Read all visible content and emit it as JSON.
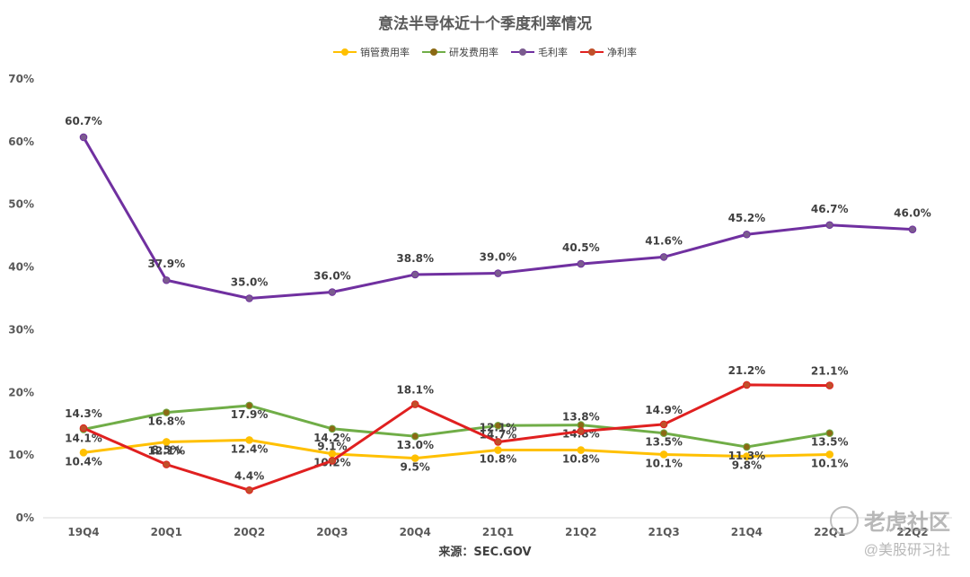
{
  "chart_data": {
    "type": "line",
    "title": "意法半导体近十个季度利率情况",
    "categories": [
      "19Q4",
      "20Q1",
      "20Q2",
      "20Q3",
      "20Q4",
      "21Q1",
      "21Q2",
      "21Q3",
      "21Q4",
      "22Q1",
      "22Q2"
    ],
    "ylim": [
      0,
      70
    ],
    "yticks": [
      "0%",
      "10%",
      "20%",
      "30%",
      "40%",
      "50%",
      "60%",
      "70%"
    ],
    "ytick_values": [
      0,
      10,
      20,
      30,
      40,
      50,
      60,
      70
    ],
    "grid": false,
    "legend_position": "top",
    "series": [
      {
        "name": "销管费用率",
        "color": "#FFC000",
        "marker": "#FFC000",
        "values": [
          10.4,
          12.1,
          12.4,
          10.2,
          9.5,
          10.8,
          10.8,
          10.1,
          9.8,
          10.1,
          null
        ],
        "labels": [
          "10.4%",
          "12.1%",
          "12.4%",
          "10.2%",
          "9.5%",
          "10.8%",
          "10.8%",
          "10.1%",
          "9.8%",
          "10.1%",
          null
        ]
      },
      {
        "name": "研发费用率",
        "color": "#70AD47",
        "marker": "#8B6914",
        "values": [
          14.1,
          16.8,
          17.9,
          14.2,
          13.0,
          14.7,
          14.8,
          13.5,
          11.3,
          13.5,
          null
        ],
        "labels": [
          "14.1%",
          "16.8%",
          "17.9%",
          "14.2%",
          "13.0%",
          "14.7%",
          "14.8%",
          "13.5%",
          "11.3%",
          "13.5%",
          null
        ]
      },
      {
        "name": "毛利率",
        "color": "#7030A0",
        "marker": "#7B5B8F",
        "values": [
          60.7,
          37.9,
          35.0,
          36.0,
          38.8,
          39.0,
          40.5,
          41.6,
          45.2,
          46.7,
          46.0
        ],
        "labels": [
          "60.7%",
          "37.9%",
          "35.0%",
          "36.0%",
          "38.8%",
          "39.0%",
          "40.5%",
          "41.6%",
          "45.2%",
          "46.7%",
          "46.0%"
        ]
      },
      {
        "name": "净利率",
        "color": "#E02020",
        "marker": "#C0502A",
        "values": [
          14.3,
          8.5,
          4.4,
          9.1,
          18.1,
          12.1,
          13.8,
          14.9,
          21.2,
          21.1,
          null
        ],
        "labels": [
          "14.3%",
          "8.5%",
          "4.4%",
          "9.1%",
          "18.1%",
          "12.1%",
          "13.8%",
          "14.9%",
          "21.2%",
          "21.1%",
          null
        ]
      }
    ]
  },
  "source_label": "来源：SEC.GOV",
  "watermark": {
    "brand": "老虎社区",
    "sub": "@美股研习社"
  }
}
